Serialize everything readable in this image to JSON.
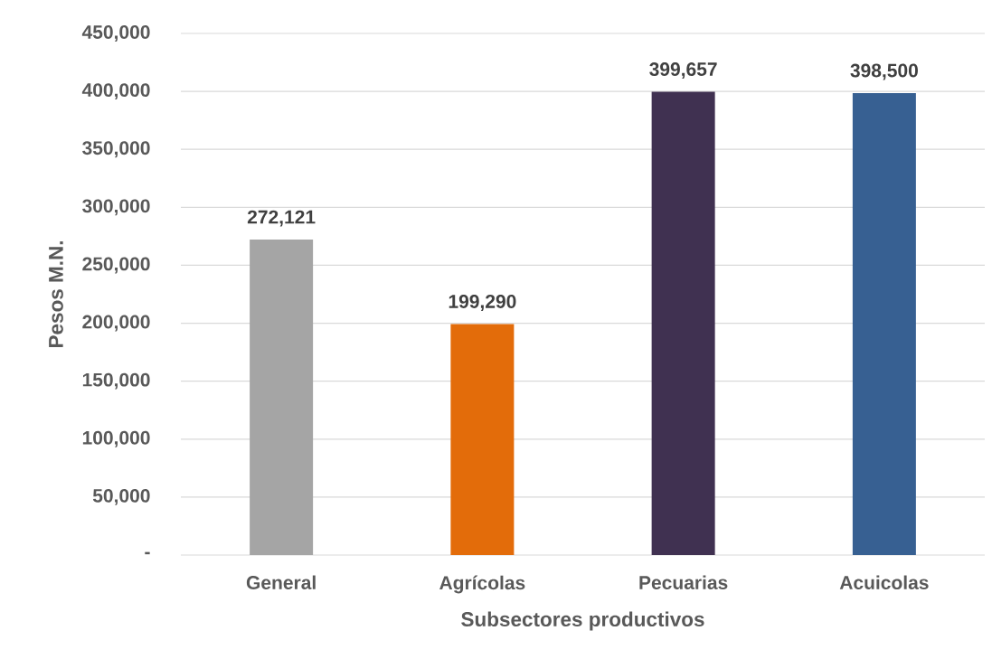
{
  "chart_data": {
    "type": "bar",
    "xlabel": "Subsectores productivos",
    "ylabel": "Pesos M.N.",
    "categories": [
      "General",
      "Agrícolas",
      "Pecuarias",
      "Acuicolas"
    ],
    "values": [
      272121,
      199290,
      399657,
      398500
    ],
    "colors": [
      "#a5a5a5",
      "#e36c0a",
      "#403151",
      "#376092"
    ],
    "value_labels": [
      "272,121",
      "199,290",
      "399,657",
      "398,500"
    ],
    "ylim": [
      0,
      450000
    ],
    "yticks": [
      {
        "value": 0,
        "label": "-"
      },
      {
        "value": 50000,
        "label": "50,000"
      },
      {
        "value": 100000,
        "label": "100,000"
      },
      {
        "value": 150000,
        "label": "150,000"
      },
      {
        "value": 200000,
        "label": "200,000"
      },
      {
        "value": 250000,
        "label": "250,000"
      },
      {
        "value": 300000,
        "label": "300,000"
      },
      {
        "value": 350000,
        "label": "350,000"
      },
      {
        "value": 400000,
        "label": "400,000"
      },
      {
        "value": 450000,
        "label": "450,000"
      }
    ],
    "grid": "y"
  }
}
